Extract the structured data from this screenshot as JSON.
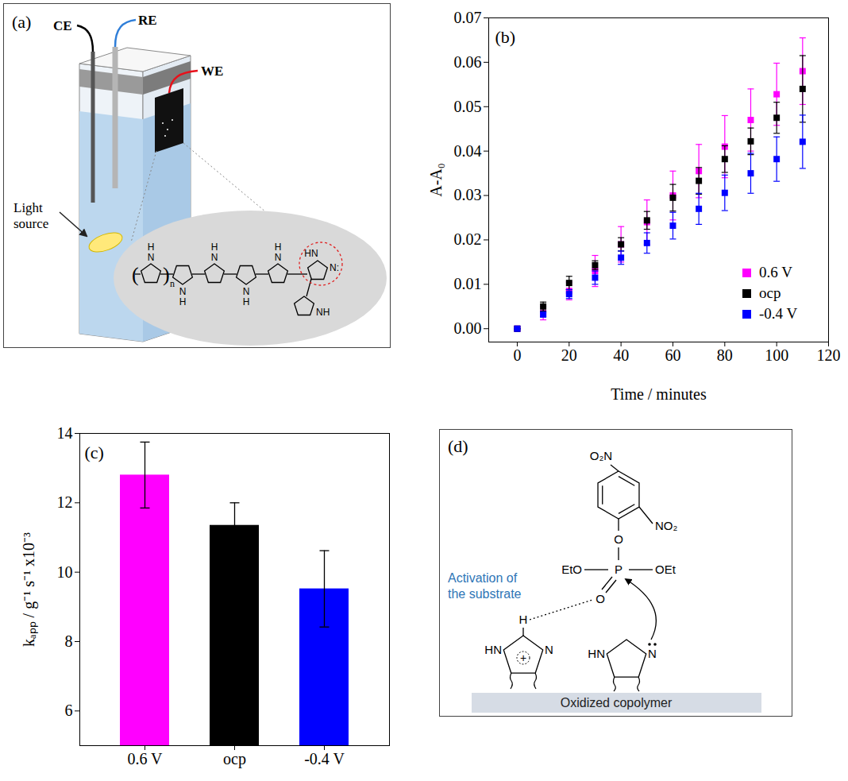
{
  "chart_data": [
    {
      "type": "scatter",
      "panel_label": "(b)",
      "x_label": "Time / minutes",
      "y_label": "A-A₀",
      "x": [
        0,
        10,
        20,
        30,
        40,
        50,
        60,
        70,
        80,
        90,
        100,
        110
      ],
      "series": [
        {
          "name": "0.6 V",
          "color": "#ff00ff",
          "marker": "square",
          "values": [
            0,
            0.0035,
            0.0085,
            0.013,
            0.019,
            0.024,
            0.03,
            0.0355,
            0.041,
            0.047,
            0.0528,
            0.058
          ],
          "errors": [
            0,
            0.0015,
            0.002,
            0.0035,
            0.004,
            0.005,
            0.0055,
            0.006,
            0.007,
            0.007,
            0.007,
            0.0075
          ]
        },
        {
          "name": "ocp",
          "color": "#000000",
          "marker": "square",
          "values": [
            0,
            0.005,
            0.0103,
            0.0143,
            0.019,
            0.0244,
            0.0295,
            0.0333,
            0.0382,
            0.0422,
            0.0475,
            0.054
          ],
          "errors": [
            0,
            0.001,
            0.0015,
            0.001,
            0.0015,
            0.002,
            0.003,
            0.003,
            0.003,
            0.003,
            0.0035,
            0.0075
          ]
        },
        {
          "name": "-0.4 V",
          "color": "#0000ff",
          "marker": "square",
          "values": [
            0,
            0.0032,
            0.0078,
            0.0115,
            0.016,
            0.0193,
            0.0232,
            0.027,
            0.0306,
            0.035,
            0.0382,
            0.0421
          ],
          "errors": [
            0,
            0.0005,
            0.001,
            0.0015,
            0.0015,
            0.0023,
            0.003,
            0.0035,
            0.004,
            0.0045,
            0.005,
            0.006
          ]
        }
      ],
      "xlim": [
        -11,
        120
      ],
      "xticks": [
        0,
        20,
        40,
        60,
        80,
        100,
        120
      ],
      "ylim": [
        -0.003,
        0.07
      ],
      "yticks": [
        {
          "value": 0,
          "label": "0.00"
        },
        0.01,
        0.02,
        0.03,
        0.04,
        0.05,
        0.06,
        0.07
      ],
      "legend": "lower right"
    },
    {
      "type": "bar",
      "panel_label": "(c)",
      "y_label": "kₐₚₚ / g⁻¹ s⁻¹ x10⁻³",
      "categories": [
        "0.6 V",
        "ocp",
        "-0.4 V"
      ],
      "values": [
        12.8,
        11.35,
        9.52
      ],
      "errors": [
        0.95,
        0.65,
        1.1
      ],
      "colors": [
        "#ff00ff",
        "#000000",
        "#0000ff"
      ],
      "ylim": [
        5,
        14
      ],
      "yticks": [
        6,
        8,
        10,
        12,
        14
      ]
    }
  ],
  "cell": {
    "panel_label": "(a)",
    "electrodes": [
      {
        "name": "CE",
        "color": "#000000"
      },
      {
        "name": "RE",
        "color": "#2f7ed8"
      },
      {
        "name": "WE",
        "color": "#e8101a"
      }
    ],
    "light_source": "Light source",
    "copolymer": {
      "repeat": "n",
      "pyrrole_rings": [
        [
          "H",
          "N"
        ],
        [
          "N",
          "H"
        ],
        [
          "H",
          "N"
        ],
        [
          "N",
          "H"
        ],
        [
          "H",
          "N"
        ]
      ],
      "imidazole": [
        "HN",
        "N:"
      ],
      "pendant": "NH"
    }
  },
  "mechanism": {
    "panel_label": "(d)",
    "substrate": {
      "para_group": "O₂N",
      "ortho_group": "NO₂",
      "ester_oxygen": "O",
      "phosphorus": "P",
      "left_group": "EtO",
      "right_group": "OEt",
      "double_bond_oxygen": "O"
    },
    "activation_label": "Activation of the substrate",
    "imidazolium": {
      "nh": "HN",
      "n": "N",
      "h": "H",
      "charge": "+"
    },
    "imidazole": {
      "nh": "HN",
      "n": "N"
    },
    "caption": "Oxidized copolymer"
  }
}
